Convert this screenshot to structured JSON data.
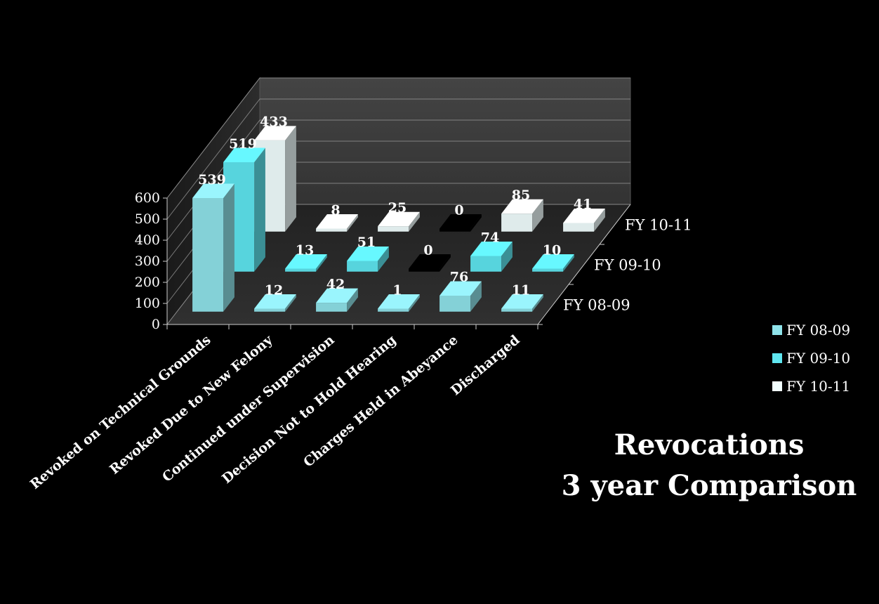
{
  "chart_data": {
    "type": "bar",
    "title": "Revocations",
    "subtitle": "3 year Comparison",
    "categories": [
      "Revoked on Technical Grounds",
      "Revoked Due to New Felony",
      "Continued under Supervision",
      "Decision Not to Hold Hearing",
      "Charges Held in Abeyance",
      "Discharged"
    ],
    "series": [
      {
        "name": "FY 08-09",
        "values": [
          539,
          12,
          42,
          1,
          76,
          11
        ],
        "color": "#8fe3ea"
      },
      {
        "name": "FY 09-10",
        "values": [
          519,
          13,
          51,
          0,
          74,
          10
        ],
        "color": "#5fe6f0"
      },
      {
        "name": "FY 10-11",
        "values": [
          433,
          8,
          25,
          0,
          85,
          41
        ],
        "color": "#f2ffff"
      }
    ],
    "yticks": [
      "0",
      "100",
      "200",
      "300",
      "400",
      "500",
      "600"
    ],
    "ylim": [
      0,
      600
    ],
    "grid": true,
    "legend_position": "right"
  },
  "colors": {
    "background": "#000000",
    "floor": "#2a2a2a",
    "back_wall": "#3a3a3a",
    "grid": "#9a9a9a",
    "text": "#ffffff"
  }
}
